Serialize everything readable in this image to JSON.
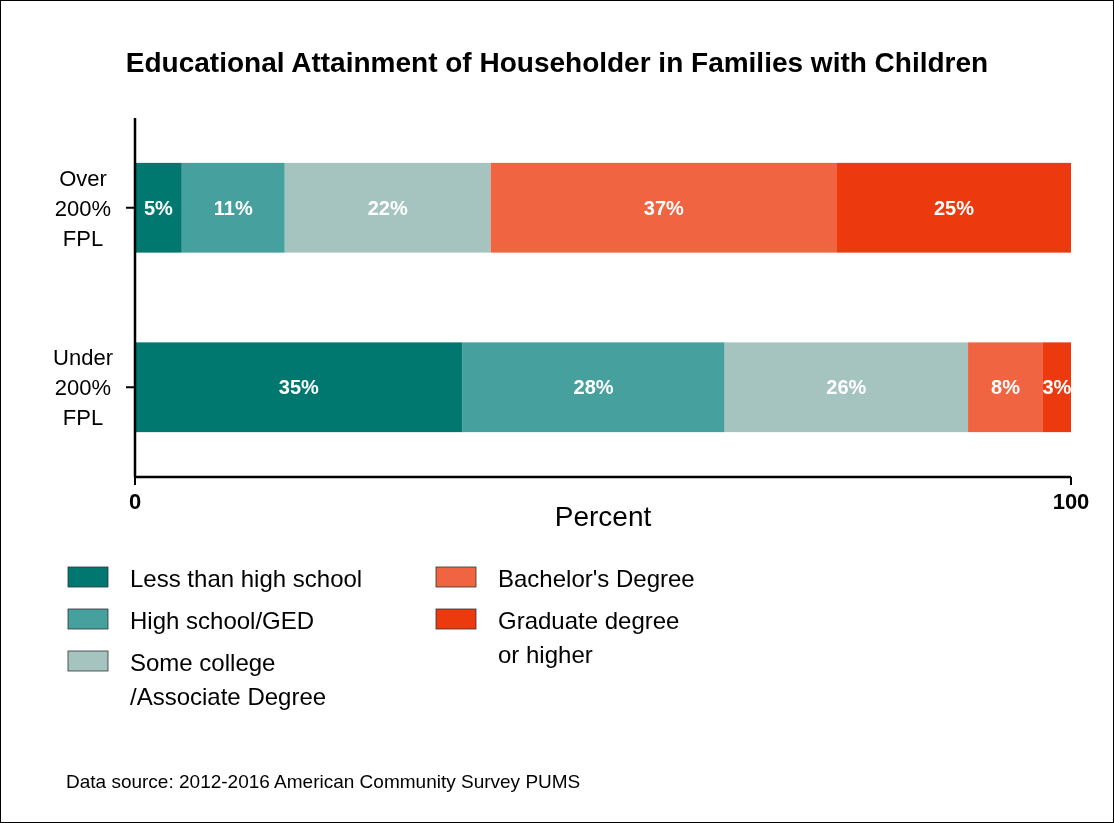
{
  "chart_data": {
    "type": "bar",
    "orientation": "horizontal",
    "stacked": true,
    "title": "Educational Attainment of Householder in Families with Children",
    "xlabel": "Percent",
    "categories": [
      "Over 200% FPL",
      "Under 200% FPL"
    ],
    "series": [
      {
        "name": "Less than high school",
        "color": "#00786f",
        "values": [
          5,
          35
        ],
        "value_labels": [
          "5%",
          "35%"
        ]
      },
      {
        "name": "High school/GED",
        "color": "#45a09e",
        "values": [
          11,
          28
        ],
        "value_labels": [
          "11%",
          "28%"
        ]
      },
      {
        "name": "Some college /Associate Degree",
        "color": "#a5c4c0",
        "values": [
          22,
          26
        ],
        "value_labels": [
          "22%",
          "26%"
        ]
      },
      {
        "name": "Bachelor's Degree",
        "color": "#f06441",
        "values": [
          37,
          8
        ],
        "value_labels": [
          "37%",
          "8%"
        ]
      },
      {
        "name": "Graduate degree or higher",
        "color": "#ec3a0e",
        "values": [
          25,
          3
        ],
        "value_labels": [
          "25%",
          "3%"
        ]
      }
    ],
    "xlim": [
      0,
      100
    ],
    "xticks": [
      0,
      100
    ],
    "legend": "bottom",
    "grid": false,
    "annotations": [
      "Data source: 2012-2016 American Community Survey PUMS"
    ]
  }
}
